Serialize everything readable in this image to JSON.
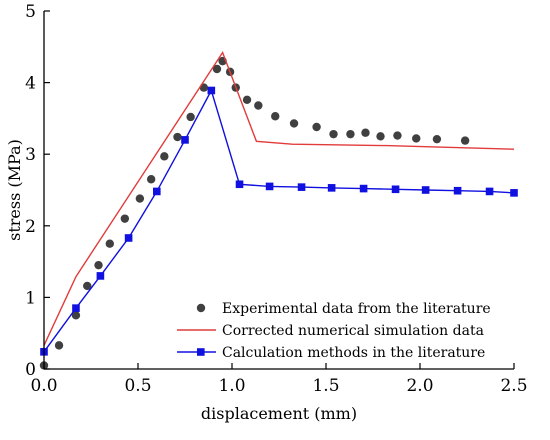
{
  "chart_data": {
    "type": "line",
    "title": "",
    "xlabel": "displacement (mm)",
    "ylabel": "stress (MPa)",
    "xlim": [
      0,
      2.5
    ],
    "ylim": [
      0,
      5
    ],
    "xticks": [
      "0.0",
      "0.5",
      "1.0",
      "1.5",
      "2.0",
      "2.5"
    ],
    "yticks": [
      "0",
      "1",
      "2",
      "3",
      "4",
      "5"
    ],
    "grid": false,
    "legend_position": "bottom-right",
    "series": [
      {
        "name": "Experimental data from the literature",
        "style": "scatter",
        "color": "#404040",
        "points": [
          [
            0.0,
            0.05
          ],
          [
            0.08,
            0.33
          ],
          [
            0.17,
            0.75
          ],
          [
            0.23,
            1.16
          ],
          [
            0.29,
            1.45
          ],
          [
            0.35,
            1.75
          ],
          [
            0.43,
            2.1
          ],
          [
            0.51,
            2.38
          ],
          [
            0.57,
            2.65
          ],
          [
            0.64,
            2.97
          ],
          [
            0.71,
            3.24
          ],
          [
            0.78,
            3.52
          ],
          [
            0.85,
            3.93
          ],
          [
            0.92,
            4.19
          ],
          [
            0.95,
            4.3
          ],
          [
            0.99,
            4.15
          ],
          [
            1.02,
            3.93
          ],
          [
            1.08,
            3.76
          ],
          [
            1.14,
            3.68
          ],
          [
            1.23,
            3.53
          ],
          [
            1.33,
            3.43
          ],
          [
            1.45,
            3.38
          ],
          [
            1.54,
            3.28
          ],
          [
            1.63,
            3.28
          ],
          [
            1.71,
            3.3
          ],
          [
            1.79,
            3.25
          ],
          [
            1.88,
            3.26
          ],
          [
            1.98,
            3.22
          ],
          [
            2.09,
            3.21
          ],
          [
            2.24,
            3.19
          ]
        ]
      },
      {
        "name": "Corrected numerical simulation data",
        "style": "line",
        "color": "#e23b3b",
        "points": [
          [
            0.0,
            0.33
          ],
          [
            0.17,
            1.29
          ],
          [
            0.95,
            4.42
          ],
          [
            1.13,
            3.18
          ],
          [
            1.32,
            3.14
          ],
          [
            1.82,
            3.12
          ],
          [
            2.5,
            3.07
          ]
        ]
      },
      {
        "name": "Calculation methods in the literature",
        "style": "line-marker",
        "color": "#1010e0",
        "points": [
          [
            0.0,
            0.24
          ],
          [
            0.17,
            0.85
          ],
          [
            0.3,
            1.3
          ],
          [
            0.45,
            1.83
          ],
          [
            0.6,
            2.48
          ],
          [
            0.75,
            3.2
          ],
          [
            0.89,
            3.89
          ],
          [
            1.04,
            2.58
          ],
          [
            1.2,
            2.55
          ],
          [
            1.37,
            2.54
          ],
          [
            1.53,
            2.53
          ],
          [
            1.7,
            2.52
          ],
          [
            1.87,
            2.51
          ],
          [
            2.03,
            2.5
          ],
          [
            2.2,
            2.49
          ],
          [
            2.37,
            2.48
          ],
          [
            2.5,
            2.46
          ]
        ]
      }
    ]
  }
}
